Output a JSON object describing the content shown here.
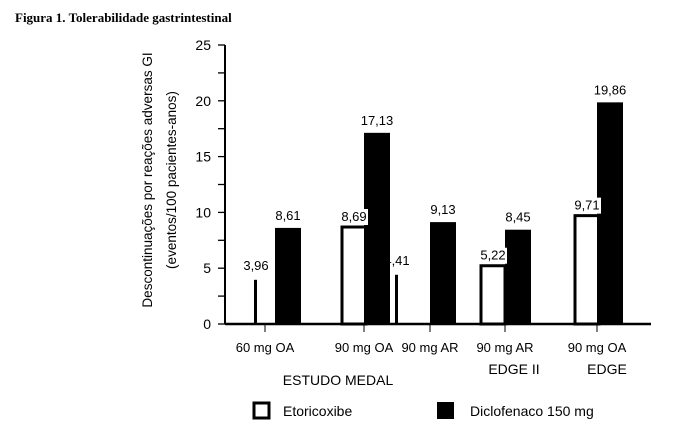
{
  "figure_title": "Figura 1. Tolerabilidade gastrintestinal",
  "chart_data": {
    "type": "bar",
    "title": "Figura 1. Tolerabilidade gastrintestinal",
    "ylabel_line1": "Descontinuações por reações adversas GI",
    "ylabel_line2": "(eventos/100 pacientes-anos)",
    "xlabel": "",
    "ylim": [
      0,
      25
    ],
    "yticks": [
      0,
      5,
      10,
      15,
      20,
      25
    ],
    "grid": false,
    "legend_position": "bottom",
    "categories": [
      "60 mg OA",
      "90 mg OA",
      "90 mg AR",
      "90 mg AR",
      "90 mg OA"
    ],
    "groups": [
      {
        "label": "ESTUDO MEDAL",
        "categories": [
          0,
          1,
          2
        ]
      },
      {
        "label": "EDGE II",
        "categories": [
          3
        ]
      },
      {
        "label": "EDGE",
        "categories": [
          4
        ]
      }
    ],
    "series": [
      {
        "name": "Etoricoxibe",
        "fill": "#ffffff",
        "values": [
          3.96,
          8.69,
          4.41,
          5.22,
          9.71
        ],
        "labels": [
          "3,96",
          "8,69",
          "4,41",
          "5,22",
          "9,71"
        ]
      },
      {
        "name": "Diclofenaco 150 mg",
        "fill": "#000000",
        "values": [
          8.61,
          17.13,
          9.13,
          8.45,
          19.86
        ],
        "labels": [
          "8,61",
          "17,13",
          "9,13",
          "8,45",
          "19,86"
        ]
      }
    ]
  }
}
